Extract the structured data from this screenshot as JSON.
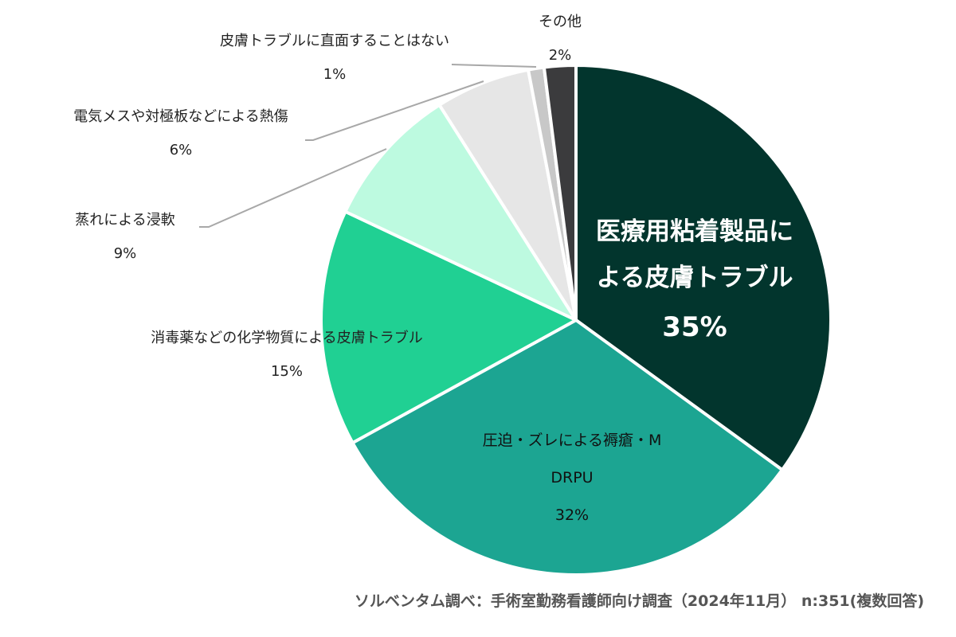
{
  "chart_data": {
    "type": "pie",
    "start": "top",
    "direction": "clockwise",
    "categories": [
      "医療用粘着製品による皮膚トラブル",
      "圧迫・ズレによる褥瘡・MDRPU",
      "消毒薬などの化学物質による皮膚トラブル",
      "蒸れによる浸軟",
      "電気メスや対極板などによる熱傷",
      "皮膚トラブルに直面することはない",
      "その他"
    ],
    "values": [
      35,
      32,
      15,
      9,
      6,
      1,
      2
    ],
    "value_labels": [
      "35%",
      "32%",
      "15%",
      "9%",
      "6%",
      "1%",
      "2%"
    ],
    "colors": [
      "#02352d",
      "#1ca592",
      "#20d093",
      "#bdfae0",
      "#e6e6e6",
      "#c8c8c8",
      "#3b3b3d"
    ],
    "legend": "none"
  },
  "footnote": "ソルベンタム調べ：手術室勤務看護師向け調査（2024年11月） n:351(複数回答)"
}
